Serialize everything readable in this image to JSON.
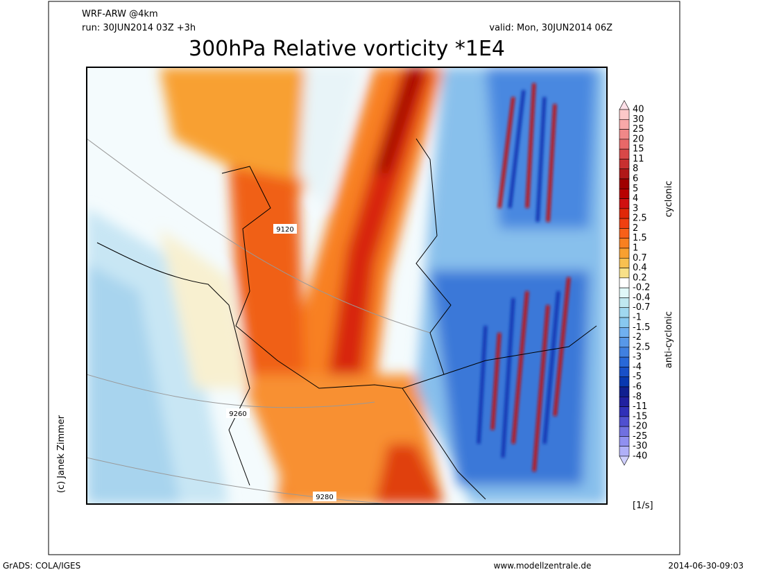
{
  "header": {
    "model": "WRF-ARW @4km",
    "run": "run: 30JUN2014 03Z +3h",
    "valid": "valid: Mon, 30JUN2014 06Z",
    "title": "300hPa Relative vorticity *1E4"
  },
  "colorbar": {
    "labels": [
      "40",
      "30",
      "25",
      "20",
      "15",
      "11",
      "8",
      "6",
      "5",
      "4",
      "3",
      "2.5",
      "2",
      "1.5",
      "1",
      "0.7",
      "0.4",
      "0.2",
      "-0.2",
      "-0.4",
      "-0.7",
      "-1",
      "-1.5",
      "-2",
      "-2.5",
      "-3",
      "-4",
      "-5",
      "-6",
      "-8",
      "-11",
      "-15",
      "-20",
      "-25",
      "-30",
      "-40"
    ],
    "colors": [
      "#ffe0e8",
      "#fcc8c8",
      "#f8a8a8",
      "#f08888",
      "#e86868",
      "#d84848",
      "#c83030",
      "#b01818",
      "#a00000",
      "#b80000",
      "#d01010",
      "#e02808",
      "#f04010",
      "#f86018",
      "#f88020",
      "#f8a030",
      "#f8c050",
      "#f8e088",
      "#ffffff",
      "#e0f8f8",
      "#c0e8f0",
      "#a0d8f0",
      "#88c8f0",
      "#70b0f0",
      "#5898e8",
      "#4080e0",
      "#2868d8",
      "#1850c8",
      "#0838b0",
      "#102090",
      "#2020a0",
      "#3030b8",
      "#5050d0",
      "#7070e0",
      "#9090f0",
      "#b0b0f8",
      "#d0d0ff"
    ],
    "positive_label": "cyclonic",
    "negative_label": "anti-cyclonic",
    "unit": "[1/s]"
  },
  "contour_labels": [
    "9120",
    "9260",
    "9280"
  ],
  "credit": "(c) Janek Zimmer",
  "footer": {
    "software": "GrADS: COLA/IGES",
    "website": "www.modellzentrale.de",
    "timestamp": "2014-06-30-09:03"
  }
}
